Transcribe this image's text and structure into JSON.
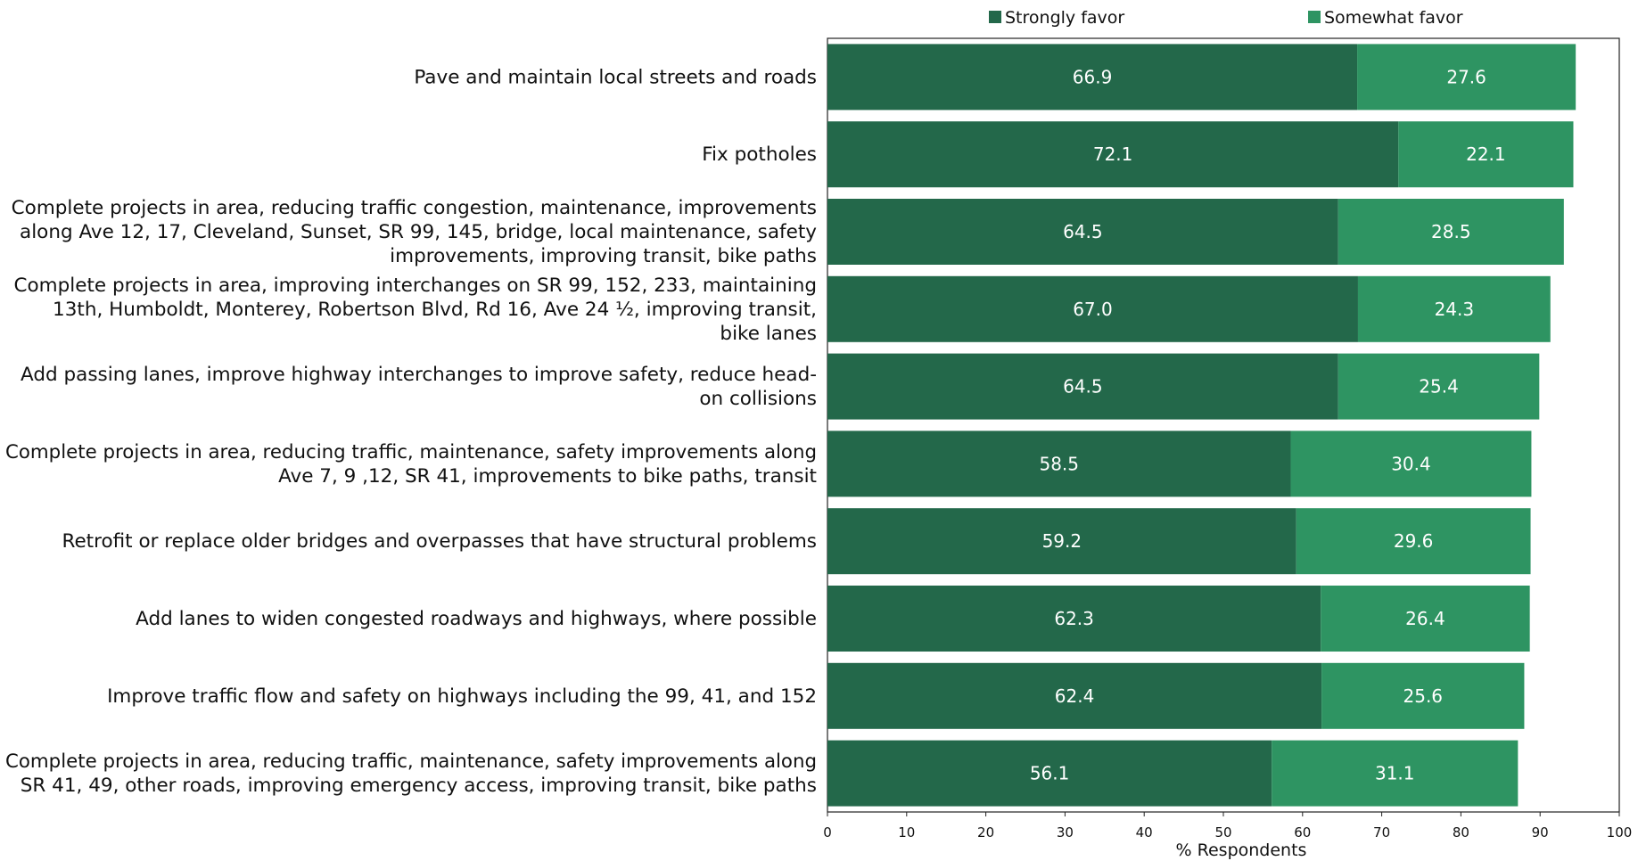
{
  "chart_data": {
    "type": "bar",
    "orientation": "horizontal",
    "stacked": true,
    "categories": [
      [
        "Pave and maintain local streets and roads"
      ],
      [
        "Fix potholes"
      ],
      [
        "Complete projects in area, reducing traffic congestion, maintenance, improvements",
        "along Ave 12, 17, Cleveland, Sunset, SR 99, 145, bridge, local maintenance, safety",
        "improvements, improving transit, bike paths"
      ],
      [
        "Complete projects in area, improving interchanges on SR 99, 152, 233, maintaining",
        "13th, Humboldt, Monterey, Robertson Blvd, Rd 16, Ave 24 ½, improving transit,",
        "bike lanes"
      ],
      [
        "Add passing lanes, improve highway interchanges to improve safety, reduce head-",
        "on collisions"
      ],
      [
        "Complete projects in area, reducing traffic, maintenance, safety improvements along",
        "Ave 7, 9 ,12, SR 41, improvements to bike paths, transit"
      ],
      [
        "Retrofit or replace older bridges and overpasses that have structural problems"
      ],
      [
        "Add lanes to widen congested roadways and highways, where possible"
      ],
      [
        "Improve traffic flow and safety on highways including the 99, 41, and 152"
      ],
      [
        "Complete projects in area, reducing traffic, maintenance, safety improvements along",
        "SR 41, 49, other roads, improving emergency access, improving transit, bike paths"
      ]
    ],
    "series": [
      {
        "name": "Strongly favor",
        "color": "#23684a",
        "values": [
          66.9,
          72.1,
          64.5,
          67.0,
          64.5,
          58.5,
          59.2,
          62.3,
          62.4,
          56.1
        ],
        "labels": [
          "66.9",
          "72.1",
          "64.5",
          "67.0",
          "64.5",
          "58.5",
          "59.2",
          "62.3",
          "62.4",
          "56.1"
        ]
      },
      {
        "name": "Somewhat favor",
        "color": "#2e9462",
        "values": [
          27.6,
          22.1,
          28.5,
          24.3,
          25.4,
          30.4,
          29.6,
          26.4,
          25.6,
          31.1
        ],
        "labels": [
          "27.6",
          "22.1",
          "28.5",
          "24.3",
          "25.4",
          "30.4",
          "29.6",
          "26.4",
          "25.6",
          "31.1"
        ]
      }
    ],
    "xlabel": "% Respondents",
    "ylabel": "",
    "title": "",
    "xlim": [
      0,
      100
    ],
    "xticks": [
      "0",
      "10",
      "20",
      "30",
      "40",
      "50",
      "60",
      "70",
      "80",
      "90",
      "100"
    ],
    "legend_position": "top",
    "grid": false
  }
}
